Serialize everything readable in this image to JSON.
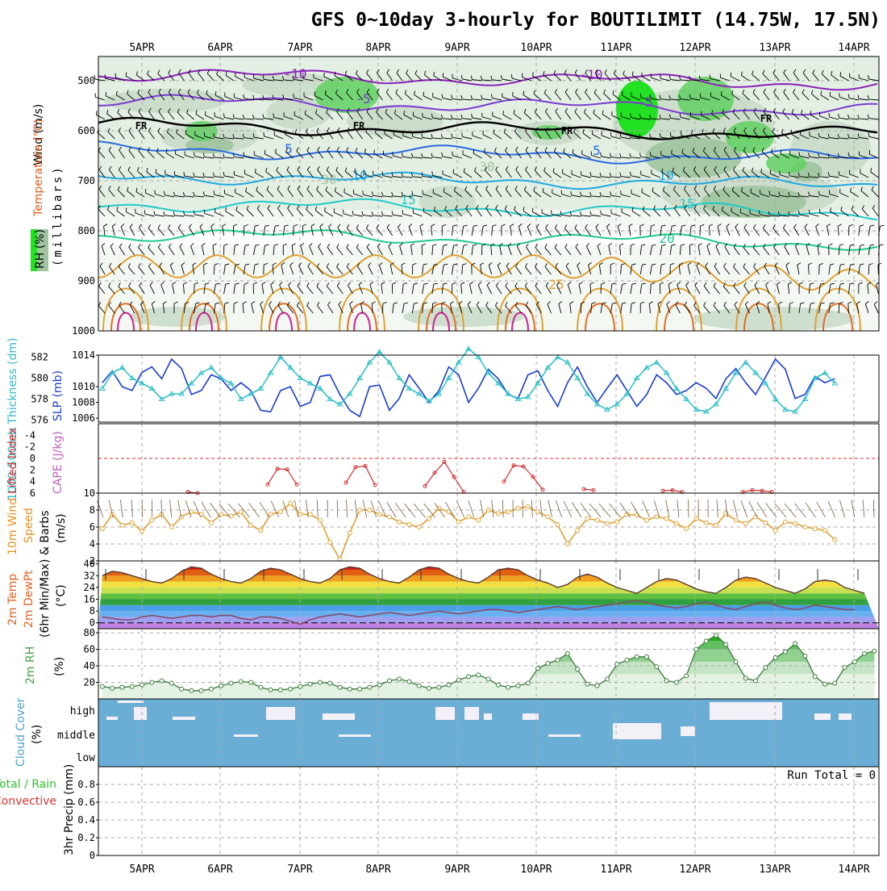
{
  "title": "GFS 0~10day 3-hourly for BOUTILIMIT (14.75W, 17.5N)",
  "dates": [
    "5APR",
    "6APR",
    "7APR",
    "8APR",
    "9APR",
    "10APR",
    "11APR",
    "12APR",
    "13APR",
    "14APR"
  ],
  "colors": {
    "background": "#ffffff",
    "grid": "#a8a8a8",
    "rh_light": "#e3efe3",
    "rh_mid": "#c6d8c6",
    "rh_dark": "#9fc49f",
    "rh_green": "#5fd05f",
    "rh_bright": "#22e022",
    "temp_neg10": "#8a22b8",
    "temp_neg5": "#7a3ad0",
    "temp_5": "#2a6ae0",
    "temp_10": "#20a8e0",
    "temp_15": "#20c8c8",
    "temp_20": "#20c890",
    "temp_25": "#e0a030",
    "temp_30": "#e07020",
    "temp_35": "#d02090",
    "freezing": "#000000",
    "slp": "#1a3cd0",
    "thickness": "#30c0c8",
    "cape": "#d03030",
    "li_zero": "#d03030",
    "wind10": "#e0a030",
    "rh2m": "#40a040",
    "cloud": "#6aaed6",
    "cloud_clear": "#f4f0f8"
  },
  "panels": {
    "sounding": {
      "ylabel_wind": "Wind (m/s)",
      "ylabel_temp": "Temperature (°C)",
      "ylabel_rh": "RH (%)",
      "ylabel_units": "(millibars)",
      "ticks": [
        "500",
        "600",
        "700",
        "800",
        "900",
        "1000"
      ],
      "temperature_labels": [
        {
          "text": "-10",
          "color": "temp_neg10"
        },
        {
          "text": "-10",
          "color": "temp_neg10"
        },
        {
          "text": "-5",
          "color": "temp_neg5"
        },
        {
          "text": "-5",
          "color": "temp_neg5"
        },
        {
          "text": "FR",
          "color": "freezing"
        },
        {
          "text": "FR",
          "color": "freezing"
        },
        {
          "text": "FR",
          "color": "freezing"
        },
        {
          "text": "FR",
          "color": "freezing"
        },
        {
          "text": "5",
          "color": "temp_5"
        },
        {
          "text": "5",
          "color": "temp_5"
        },
        {
          "text": "10",
          "color": "temp_10"
        },
        {
          "text": "10",
          "color": "temp_10"
        },
        {
          "text": "15",
          "color": "temp_15"
        },
        {
          "text": "15",
          "color": "temp_15"
        },
        {
          "text": "20",
          "color": "temp_20"
        },
        {
          "text": "25",
          "color": "temp_25"
        },
        {
          "text": "30",
          "color": "rh_dark"
        },
        {
          "text": "30",
          "color": "rh_dark"
        }
      ]
    },
    "slp": {
      "ylabel_left": "1000-500mb Thickness (dm)",
      "ylabel_right": "SLP (mb)",
      "ticks_left": [
        "582",
        "580",
        "578",
        "576"
      ],
      "ticks_right": [
        "1014",
        "1010",
        "1008",
        "1006"
      ]
    },
    "cape": {
      "ylabel_left": "Lifted Index",
      "ylabel_right": "CAPE (J/kg)",
      "ticks_left": [
        "-4",
        "-2",
        "0",
        "2",
        "4",
        "6"
      ]
    },
    "wind": {
      "ylabel_a": "10m Wind",
      "ylabel_b": "Speed",
      "ylabel_c": "& Barbs",
      "ylabel_units": "(m/s)",
      "ticks": [
        "10",
        "8",
        "6",
        "4",
        "2"
      ]
    },
    "temp2m": {
      "ylabel_a": "2m Temp",
      "ylabel_b": "2m DewPt",
      "ylabel_c": "(6hr Min/Max)",
      "ylabel_units": "(°C)",
      "ticks": [
        "40",
        "32",
        "24",
        "16",
        "8",
        "0"
      ]
    },
    "rh2m": {
      "ylabel": "2m RH",
      "ylabel_units": "(%)",
      "ticks": [
        "80",
        "60",
        "40",
        "20"
      ]
    },
    "cloud": {
      "ylabel": "Cloud Cover",
      "ylabel_units": "(%)",
      "levels": [
        "high",
        "middle",
        "low"
      ]
    },
    "precip": {
      "ylabel_a": "Total / Rain",
      "ylabel_b": "Convective",
      "ylabel_c": "3hr Precip (mm)",
      "ticks": [
        "0.8",
        "0.6",
        "0.4",
        "0.2",
        "0"
      ],
      "run_total": "Run Total = 0"
    }
  },
  "chart_data": [
    {
      "type": "line",
      "title": "Sea level pressure and 1000-500mb thickness",
      "x_step_hours": 3,
      "x_start": "4APR 12Z",
      "series": [
        {
          "name": "SLP (mb)",
          "values": [
            1010.5,
            1012,
            1010,
            1009.5,
            1011.8,
            1012.5,
            1011,
            1013.5,
            1012.3,
            1009,
            1009.5,
            1011.5,
            1011,
            1009.5,
            1010.5,
            1009.5,
            1007,
            1006.8,
            1009.5,
            1010,
            1007.5,
            1008,
            1011.3,
            1011.5,
            1009,
            1007,
            1006.2,
            1010,
            1010.2,
            1007,
            1008.5,
            1011.5,
            1009.8,
            1008,
            1009.5,
            1012.5,
            1011.5,
            1008,
            1009.8,
            1012.2,
            1011,
            1009,
            1008.5,
            1011.5,
            1012,
            1009.5,
            1007.5,
            1010.5,
            1012.5,
            1010,
            1008,
            1009.8,
            1011.5,
            1009.5,
            1007.5,
            1009,
            1011.5,
            1010.5,
            1009,
            1009.5,
            1010.5,
            1009.8,
            1008.5,
            1011,
            1012.3,
            1010.5,
            1009,
            1011.2,
            1013.5,
            1012.2,
            1008.5,
            1009,
            1011.3,
            1010.5,
            1011
          ]
        },
        {
          "name": "1000-500mb Thickness (dm)",
          "values": [
            579,
            580.5,
            581,
            580,
            579.5,
            579,
            578,
            578.5,
            578.5,
            579.5,
            580.5,
            581,
            580,
            579.5,
            578,
            578.5,
            579,
            580.5,
            582,
            581,
            580,
            579.5,
            579,
            578,
            577.5,
            578.5,
            580,
            581.5,
            582.5,
            581.5,
            580,
            579,
            578.5,
            577.8,
            578.5,
            580,
            581.5,
            582.8,
            582,
            580.5,
            579.5,
            578.5,
            578,
            578.2,
            579.5,
            581,
            582,
            581.5,
            580,
            578.5,
            577.5,
            577,
            577.5,
            578.5,
            580,
            581,
            581.5,
            580.5,
            579,
            578,
            577,
            576.8,
            577.5,
            579,
            580.5,
            581.5,
            580.5,
            579.5,
            578,
            577,
            576.8,
            578,
            580,
            580.5,
            579.5
          ]
        }
      ],
      "ylim_left": [
        576,
        582
      ],
      "ylim_right": [
        1006,
        1014
      ]
    },
    {
      "type": "line",
      "title": "Lifted Index / CAPE",
      "series": [
        {
          "name": "Lifted Index",
          "values_by_day": [
            {
              "day": "6APR",
              "li": [
                5.8,
                6
              ]
            },
            {
              "day": "7APR",
              "li": [
                4.5,
                1.8,
                1.9,
                4.5
              ]
            },
            {
              "day": "8APR",
              "li": [
                4.2,
                1.5,
                1.3,
                4.6
              ]
            },
            {
              "day": "9APR",
              "li": [
                4.8,
                2.5,
                0.6,
                3.2,
                5.8
              ]
            },
            {
              "day": "10APR",
              "li": [
                4.0,
                1.2,
                1.4,
                3.2,
                5.4
              ]
            },
            {
              "day": "11APR",
              "li": [
                5.3,
                5.5
              ]
            },
            {
              "day": "12APR",
              "li": [
                5.6,
                5.5,
                5.8
              ]
            },
            {
              "day": "13APR",
              "li": [
                5.8,
                5.5,
                5.6,
                5.8
              ]
            }
          ]
        }
      ],
      "ylim": [
        -6,
        6
      ],
      "reference_line": 0
    },
    {
      "type": "line",
      "title": "10m Wind Speed",
      "series": [
        {
          "name": "10m Wind Speed (m/s)",
          "values": [
            5.8,
            7.5,
            6.2,
            6.5,
            5.5,
            6.8,
            7.5,
            6.0,
            7.2,
            7.8,
            7.5,
            6.5,
            7.5,
            7.3,
            7.8,
            6.2,
            5.6,
            7.5,
            7.8,
            8.8,
            7.5,
            7.5,
            6.8,
            4.2,
            2.2,
            5.3,
            8.0,
            8.0,
            7.5,
            7.2,
            6.6,
            6.3,
            6.0,
            7.0,
            8.2,
            7.8,
            6.6,
            7.2,
            6.8,
            8.0,
            7.6,
            7.8,
            8.2,
            8.4,
            7.8,
            7.2,
            6.3,
            4.0,
            5.6,
            7.0,
            6.8,
            6.4,
            6.6,
            7.5,
            7.4,
            6.8,
            7.2,
            7.0,
            6.4,
            5.8,
            7.0,
            6.5,
            6.2,
            7.6,
            6.8,
            6.4,
            7.2,
            6.5,
            5.6,
            6.6,
            6.4,
            6.0,
            5.8,
            5.6,
            4.5
          ]
        }
      ],
      "ylim": [
        2,
        10
      ]
    },
    {
      "type": "area",
      "title": "2m Temperature and Dew Point",
      "series": [
        {
          "name": "2m Temp (°C)",
          "values": [
            32,
            35,
            34,
            32,
            30,
            28,
            27,
            30,
            35,
            38,
            37,
            33,
            30,
            28,
            27,
            30,
            35,
            37,
            36,
            33,
            30,
            28,
            27,
            30,
            36,
            38,
            37,
            33,
            30,
            28,
            27,
            31,
            36,
            38,
            37,
            33,
            30,
            28,
            27,
            31,
            36,
            37,
            36,
            32,
            29,
            27,
            24,
            26,
            31,
            33,
            31,
            27,
            24,
            22,
            20,
            24,
            28,
            30,
            29,
            26,
            23,
            21,
            20,
            24,
            29,
            31,
            30,
            27,
            24,
            22,
            20,
            23,
            28,
            29,
            28,
            24,
            22,
            20
          ]
        },
        {
          "name": "2m DewPt (°C)",
          "values": [
            4,
            3,
            2,
            2,
            4,
            5,
            4,
            3,
            4,
            5,
            5,
            4,
            5,
            5,
            3,
            2,
            4,
            4,
            3,
            1,
            -1,
            2,
            4,
            5,
            6,
            5,
            4,
            5,
            6,
            7,
            6,
            5,
            6,
            7,
            8,
            7,
            6,
            7,
            8,
            9,
            9,
            8,
            7,
            8,
            9,
            10,
            11,
            10,
            9,
            10,
            11,
            12,
            13,
            14,
            15,
            14,
            12,
            11,
            10,
            11,
            13,
            14,
            12,
            10,
            9,
            11,
            13,
            14,
            12,
            10,
            9,
            10,
            12,
            11,
            10,
            9,
            9
          ]
        }
      ],
      "ylim": [
        -4,
        42
      ]
    },
    {
      "type": "area",
      "title": "2m Relative Humidity",
      "series": [
        {
          "name": "2m RH (%)",
          "values": [
            15,
            13,
            14,
            15,
            17,
            20,
            22,
            19,
            12,
            10,
            10,
            12,
            16,
            19,
            21,
            20,
            14,
            11,
            11,
            12,
            15,
            18,
            20,
            19,
            14,
            12,
            12,
            14,
            17,
            22,
            24,
            21,
            16,
            13,
            14,
            17,
            23,
            27,
            29,
            24,
            17,
            14,
            16,
            19,
            37,
            43,
            47,
            55,
            36,
            18,
            16,
            24,
            42,
            47,
            51,
            51,
            39,
            22,
            20,
            28,
            60,
            70,
            77,
            66,
            45,
            25,
            22,
            38,
            50,
            57,
            67,
            52,
            27,
            18,
            19,
            38,
            45,
            55,
            58
          ]
        }
      ],
      "ylim": [
        0,
        85
      ]
    },
    {
      "type": "bar",
      "title": "Cloud Cover",
      "levels": [
        "high",
        "middle",
        "low"
      ],
      "note": "Mostly overcast at all levels; intermittent clear gaps in high layer"
    },
    {
      "type": "bar",
      "title": "3hr Precip",
      "values": [],
      "ylim": [
        0,
        1.0
      ]
    }
  ]
}
